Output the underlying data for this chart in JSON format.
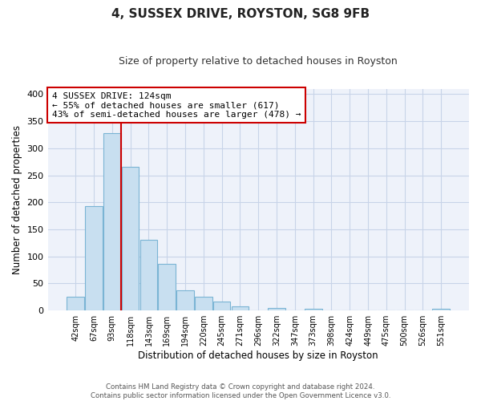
{
  "title": "4, SUSSEX DRIVE, ROYSTON, SG8 9FB",
  "subtitle": "Size of property relative to detached houses in Royston",
  "xlabel": "Distribution of detached houses by size in Royston",
  "ylabel": "Number of detached properties",
  "bar_labels": [
    "42sqm",
    "67sqm",
    "93sqm",
    "118sqm",
    "143sqm",
    "169sqm",
    "194sqm",
    "220sqm",
    "245sqm",
    "271sqm",
    "296sqm",
    "322sqm",
    "347sqm",
    "373sqm",
    "398sqm",
    "424sqm",
    "449sqm",
    "475sqm",
    "500sqm",
    "526sqm",
    "551sqm"
  ],
  "bar_values": [
    25,
    193,
    328,
    265,
    130,
    86,
    38,
    25,
    17,
    8,
    0,
    5,
    0,
    3,
    0,
    0,
    0,
    0,
    0,
    0,
    3
  ],
  "bar_color": "#c8dff0",
  "bar_edge_color": "#7ab4d4",
  "vline_color": "#cc0000",
  "vline_index": 2.5,
  "ylim": [
    0,
    410
  ],
  "yticks": [
    0,
    50,
    100,
    150,
    200,
    250,
    300,
    350,
    400
  ],
  "annotation_title": "4 SUSSEX DRIVE: 124sqm",
  "annotation_line1": "← 55% of detached houses are smaller (617)",
  "annotation_line2": "43% of semi-detached houses are larger (478) →",
  "annotation_box_color": "#ffffff",
  "annotation_box_edge": "#cc0000",
  "footer_line1": "Contains HM Land Registry data © Crown copyright and database right 2024.",
  "footer_line2": "Contains public sector information licensed under the Open Government Licence v3.0.",
  "background_color": "#ffffff",
  "grid_color": "#c8d4e8",
  "plot_bg_color": "#eef2fa",
  "figsize": [
    6.0,
    5.0
  ],
  "dpi": 100
}
